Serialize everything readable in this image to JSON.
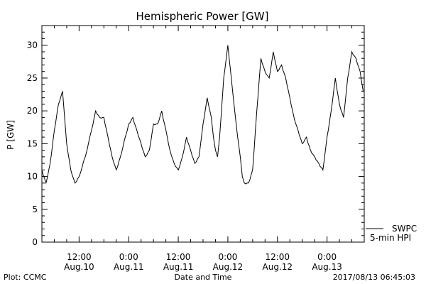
{
  "chart_data": {
    "type": "line",
    "title": "Hemispheric Power [GW]",
    "ylabel": "P [GW]",
    "xlabel": "Date and Time",
    "ylim": [
      0,
      33
    ],
    "yticks": [
      0,
      5,
      10,
      15,
      20,
      25,
      30
    ],
    "xlim": [
      "2017-08-10 03:00",
      "2017-08-13 09:00"
    ],
    "xticks": [
      {
        "x": "2017-08-10 12:00",
        "line1": "12:00",
        "line2": "Aug.10"
      },
      {
        "x": "2017-08-11 00:00",
        "line1": "0:00",
        "line2": "Aug.11"
      },
      {
        "x": "2017-08-11 12:00",
        "line1": "12:00",
        "line2": "Aug.11"
      },
      {
        "x": "2017-08-12 00:00",
        "line1": "0:00",
        "line2": "Aug.12"
      },
      {
        "x": "2017-08-12 12:00",
        "line1": "12:00",
        "line2": "Aug.12"
      },
      {
        "x": "2017-08-13 00:00",
        "line1": "0:00",
        "line2": "Aug.13"
      }
    ],
    "grid": false,
    "legend": {
      "position": "bottom-right",
      "entries": [
        "SWPC",
        "5-min HPI"
      ]
    },
    "series": [
      {
        "name": "SWPC",
        "color": "#000000",
        "x": [
          "2017-08-10 03:00",
          "2017-08-10 04:00",
          "2017-08-10 05:00",
          "2017-08-10 06:00",
          "2017-08-10 07:00",
          "2017-08-10 08:00",
          "2017-08-10 08:30",
          "2017-08-10 09:00",
          "2017-08-10 10:00",
          "2017-08-10 11:00",
          "2017-08-10 12:00",
          "2017-08-10 13:30",
          "2017-08-10 15:00",
          "2017-08-10 16:00",
          "2017-08-10 17:00",
          "2017-08-10 18:00",
          "2017-08-10 19:00",
          "2017-08-10 20:00",
          "2017-08-10 21:00",
          "2017-08-10 22:00",
          "2017-08-11 00:00",
          "2017-08-11 01:00",
          "2017-08-11 02:00",
          "2017-08-11 03:00",
          "2017-08-11 04:00",
          "2017-08-11 05:00",
          "2017-08-11 06:00",
          "2017-08-11 07:00",
          "2017-08-11 08:00",
          "2017-08-11 10:00",
          "2017-08-11 11:00",
          "2017-08-11 12:00",
          "2017-08-11 13:00",
          "2017-08-11 14:00",
          "2017-08-11 15:00",
          "2017-08-11 16:00",
          "2017-08-11 17:00",
          "2017-08-11 18:00",
          "2017-08-11 19:00",
          "2017-08-11 20:00",
          "2017-08-11 20:30",
          "2017-08-11 21:00",
          "2017-08-11 21:30",
          "2017-08-11 22:00",
          "2017-08-11 23:00",
          "2017-08-12 00:00",
          "2017-08-12 01:00",
          "2017-08-12 02:00",
          "2017-08-12 03:00",
          "2017-08-12 03:30",
          "2017-08-12 04:00",
          "2017-08-12 05:00",
          "2017-08-12 06:00",
          "2017-08-12 07:00",
          "2017-08-12 08:00",
          "2017-08-12 09:00",
          "2017-08-12 10:00",
          "2017-08-12 11:00",
          "2017-08-12 12:00",
          "2017-08-12 13:00",
          "2017-08-12 14:00",
          "2017-08-12 15:00",
          "2017-08-12 16:00",
          "2017-08-12 17:00",
          "2017-08-12 18:00",
          "2017-08-12 19:00",
          "2017-08-12 20:00",
          "2017-08-12 21:00",
          "2017-08-12 22:00",
          "2017-08-12 23:00",
          "2017-08-13 00:00",
          "2017-08-13 01:00",
          "2017-08-13 02:00",
          "2017-08-13 03:00",
          "2017-08-13 04:00",
          "2017-08-13 05:00",
          "2017-08-13 06:00",
          "2017-08-13 07:00",
          "2017-08-13 08:00",
          "2017-08-13 08:45"
        ],
        "values": [
          11,
          9,
          12,
          17,
          21,
          23,
          19,
          15,
          11,
          9,
          10,
          13,
          17,
          20,
          19,
          19,
          16,
          13,
          11,
          13,
          18,
          19,
          17,
          15,
          13,
          14,
          18,
          18,
          20,
          14,
          12,
          11,
          13,
          16,
          14,
          12,
          13,
          18,
          22,
          19,
          16,
          14,
          13,
          16,
          25,
          30,
          24,
          18,
          13,
          10,
          9,
          9,
          11,
          20,
          28,
          26,
          25,
          29,
          26,
          27,
          25,
          22,
          19,
          17,
          15,
          16,
          14,
          13,
          12,
          11,
          16,
          20,
          25,
          21,
          19,
          25,
          29,
          28,
          26,
          23
        ]
      }
    ]
  },
  "footer": {
    "left": "Plot: CCMC",
    "right": "2017/08/13 06:45:03"
  }
}
